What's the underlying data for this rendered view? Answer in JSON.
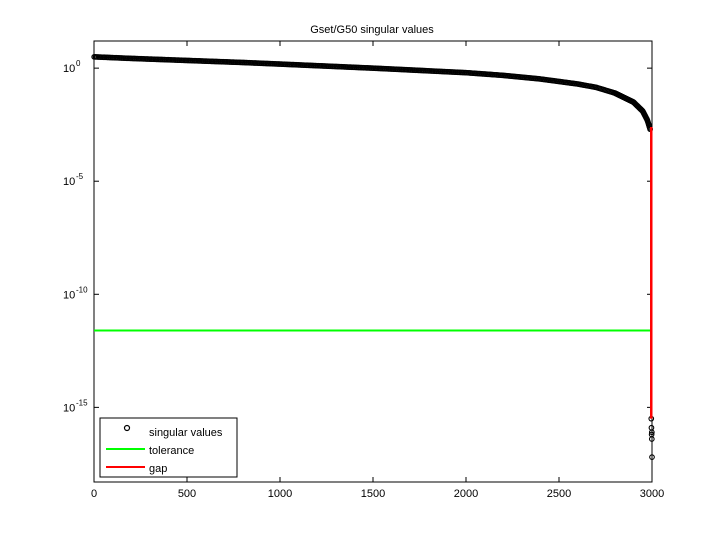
{
  "chart_data": {
    "type": "scatter",
    "title": "Gset/G50 singular values",
    "xlabel": "",
    "ylabel": "",
    "xlim": [
      0,
      3000
    ],
    "y_scale": "log",
    "ylim_log10": [
      -18.3,
      1.2
    ],
    "x_ticks": [
      0,
      500,
      1000,
      1500,
      2000,
      2500,
      3000
    ],
    "y_ticks": [
      {
        "base": "10",
        "exp": "0",
        "log10": 0
      },
      {
        "base": "10",
        "exp": "-5",
        "log10": -5
      },
      {
        "base": "10",
        "exp": "-10",
        "log10": -10
      },
      {
        "base": "10",
        "exp": "-15",
        "log10": -15
      }
    ],
    "grid": false,
    "legend_position": "bottom-left",
    "series": [
      {
        "name": "singular values",
        "style": "markers",
        "color": "#000000",
        "curve_points": [
          {
            "x": 1,
            "log10y": 0.5
          },
          {
            "x": 200,
            "log10y": 0.43
          },
          {
            "x": 500,
            "log10y": 0.34
          },
          {
            "x": 800,
            "log10y": 0.25
          },
          {
            "x": 1000,
            "log10y": 0.18
          },
          {
            "x": 1500,
            "log10y": 0.0
          },
          {
            "x": 2000,
            "log10y": -0.2
          },
          {
            "x": 2200,
            "log10y": -0.32
          },
          {
            "x": 2400,
            "log10y": -0.48
          },
          {
            "x": 2600,
            "log10y": -0.7
          },
          {
            "x": 2700,
            "log10y": -0.85
          },
          {
            "x": 2800,
            "log10y": -1.1
          },
          {
            "x": 2900,
            "log10y": -1.5
          },
          {
            "x": 2950,
            "log10y": -1.9
          },
          {
            "x": 2975,
            "log10y": -2.3
          },
          {
            "x": 2990,
            "log10y": -2.7
          }
        ],
        "tail_points": [
          {
            "x": 2996,
            "log10y": -15.5
          },
          {
            "x": 2997,
            "log10y": -15.9
          },
          {
            "x": 2998,
            "log10y": -16.2
          },
          {
            "x": 2999,
            "log10y": -16.4
          },
          {
            "x": 2999,
            "log10y": -16.1
          },
          {
            "x": 3000,
            "log10y": -17.2
          }
        ]
      },
      {
        "name": "tolerance",
        "style": "line",
        "color": "#00ff00",
        "x": [
          0,
          3000
        ],
        "log10y": [
          -11.6,
          -11.6
        ]
      },
      {
        "name": "gap",
        "style": "line",
        "color": "#ff0000",
        "x": [
          2996,
          2996
        ],
        "log10y": [
          -2.6,
          -15.5
        ]
      }
    ]
  }
}
